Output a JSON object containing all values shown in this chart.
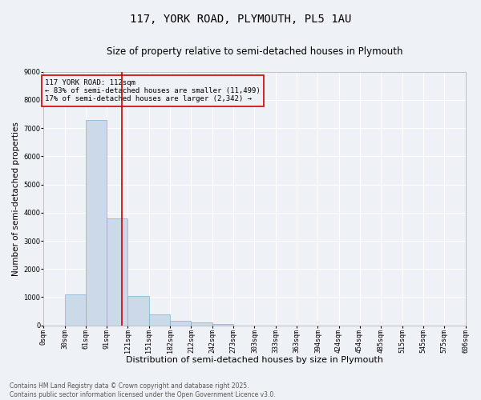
{
  "title_line1": "117, YORK ROAD, PLYMOUTH, PL5 1AU",
  "title_line2": "Size of property relative to semi-detached houses in Plymouth",
  "xlabel": "Distribution of semi-detached houses by size in Plymouth",
  "ylabel": "Number of semi-detached properties",
  "footnote": "Contains HM Land Registry data © Crown copyright and database right 2025.\nContains public sector information licensed under the Open Government Licence v3.0.",
  "bar_color": "#ccd9e8",
  "bar_edgecolor": "#7bafd4",
  "vline_x": 112,
  "vline_color": "#cc0000",
  "annotation_title": "117 YORK ROAD: 112sqm",
  "annotation_line2": "← 83% of semi-detached houses are smaller (11,499)",
  "annotation_line3": "17% of semi-detached houses are larger (2,342) →",
  "bin_edges": [
    0,
    30,
    61,
    91,
    121,
    151,
    182,
    212,
    242,
    273,
    303,
    333,
    363,
    394,
    424,
    454,
    485,
    515,
    545,
    575,
    606
  ],
  "bar_heights": [
    0,
    1100,
    7300,
    3800,
    1050,
    400,
    150,
    100,
    50,
    0,
    0,
    0,
    0,
    0,
    0,
    0,
    0,
    0,
    0,
    0
  ],
  "ylim": [
    0,
    9000
  ],
  "yticks": [
    0,
    1000,
    2000,
    3000,
    4000,
    5000,
    6000,
    7000,
    8000,
    9000
  ],
  "tick_labels": [
    "0sqm",
    "30sqm",
    "61sqm",
    "91sqm",
    "121sqm",
    "151sqm",
    "182sqm",
    "212sqm",
    "242sqm",
    "273sqm",
    "303sqm",
    "333sqm",
    "363sqm",
    "394sqm",
    "424sqm",
    "454sqm",
    "485sqm",
    "515sqm",
    "545sqm",
    "575sqm",
    "606sqm"
  ],
  "background_color": "#eef2f7",
  "grid_color": "#ffffff",
  "title1_fontsize": 10,
  "title2_fontsize": 8.5,
  "xlabel_fontsize": 8,
  "ylabel_fontsize": 7.5,
  "tick_fontsize": 6,
  "footnote_fontsize": 5.5,
  "ann_fontsize": 6.5
}
